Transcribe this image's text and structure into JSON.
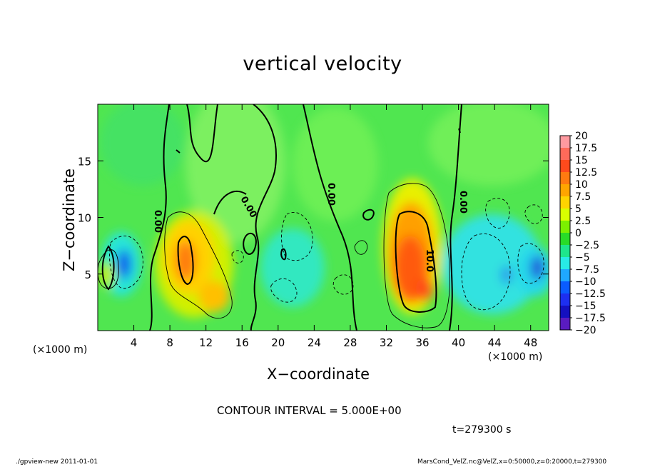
{
  "chart_data": {
    "type": "heatmap",
    "title": "vertical velocity",
    "xlabel": "X−coordinate",
    "ylabel": "Z−coordinate",
    "x_unit_left": "(×1000 m)",
    "x_unit_right": "(×1000 m)",
    "xlim": [
      0,
      50
    ],
    "ylim": [
      0,
      20
    ],
    "x_ticks": [
      4,
      8,
      12,
      16,
      20,
      24,
      28,
      32,
      36,
      40,
      44,
      48
    ],
    "y_ticks": [
      5,
      10,
      15
    ],
    "colorbar": {
      "levels": [
        "20",
        "17.5",
        "15",
        "12.5",
        "10",
        "7.5",
        "5",
        "2.5",
        "0",
        "−2.5",
        "−5",
        "−7.5",
        "−10",
        "−12.5",
        "−15",
        "−17.5",
        "−20"
      ],
      "colors": [
        "#ff9aa0",
        "#ff6a5a",
        "#ff4a1c",
        "#ff7a10",
        "#ffa500",
        "#ffd400",
        "#d8ff00",
        "#7cf000",
        "#28dc28",
        "#1ee68c",
        "#28ebe6",
        "#1fa8ff",
        "#0a5cff",
        "#1d2ff0",
        "#1410c0",
        "#5a1bc0"
      ]
    },
    "contour_labels": [
      "0.00",
      "0.00",
      "0.00",
      "0.00",
      "10.0"
    ],
    "features": [
      {
        "x": 10,
        "z": 6.5,
        "w_max": 12
      },
      {
        "x": 35,
        "z": 6,
        "w_max": 14
      },
      {
        "x": 3,
        "z": 6,
        "w_min": -12
      },
      {
        "x": 47,
        "z": 5.5,
        "w_min": -12
      }
    ],
    "contour_interval_text": "CONTOUR INTERVAL = 5.000E+00",
    "time_text": "t=279300  s"
  },
  "footer": {
    "left": "./gpview-new   2011-01-01",
    "right": "MarsCond_VelZ.nc@VelZ,x=0:50000,z=0:20000,t=279300"
  }
}
